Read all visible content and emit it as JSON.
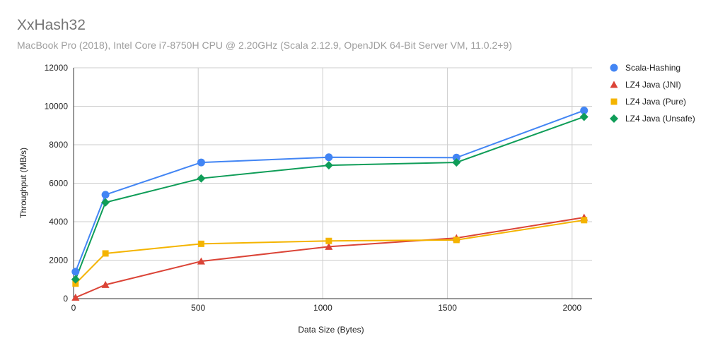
{
  "chart_data": {
    "type": "line",
    "title": "XxHash32",
    "subtitle": "MacBook Pro (2018), Intel Core i7-8750H CPU @ 2.20GHz (Scala 2.12.9, OpenJDK 64-Bit Server VM, 11.0.2+9)",
    "xlabel": "Data Size (Bytes)",
    "ylabel": "Throughput (MB/s)",
    "xlim": [
      0,
      2080
    ],
    "ylim": [
      0,
      12000
    ],
    "xticks": [
      0,
      500,
      1000,
      1500,
      2000
    ],
    "yticks": [
      0,
      2000,
      4000,
      6000,
      8000,
      10000,
      12000
    ],
    "grid": true,
    "legend_position": "right",
    "series": [
      {
        "name": "Scala-Hashing",
        "color": "#4285f4",
        "marker": "circle",
        "x": [
          8,
          128,
          512,
          1024,
          1536,
          2048
        ],
        "y": [
          1400,
          5400,
          7080,
          7350,
          7330,
          9780
        ]
      },
      {
        "name": "LZ4 Java (JNI)",
        "color": "#db4437",
        "marker": "triangle",
        "x": [
          8,
          128,
          512,
          1024,
          1536,
          2048
        ],
        "y": [
          60,
          720,
          1940,
          2700,
          3150,
          4220
        ]
      },
      {
        "name": "LZ4 Java (Pure)",
        "color": "#f4b400",
        "marker": "square",
        "x": [
          8,
          128,
          512,
          1024,
          1536,
          2048
        ],
        "y": [
          780,
          2350,
          2850,
          3000,
          3050,
          4080
        ]
      },
      {
        "name": "LZ4 Java (Unsafe)",
        "color": "#0f9d58",
        "marker": "diamond",
        "x": [
          8,
          128,
          512,
          1024,
          1536,
          2048
        ],
        "y": [
          1000,
          5000,
          6250,
          6930,
          7080,
          9450
        ]
      }
    ]
  }
}
